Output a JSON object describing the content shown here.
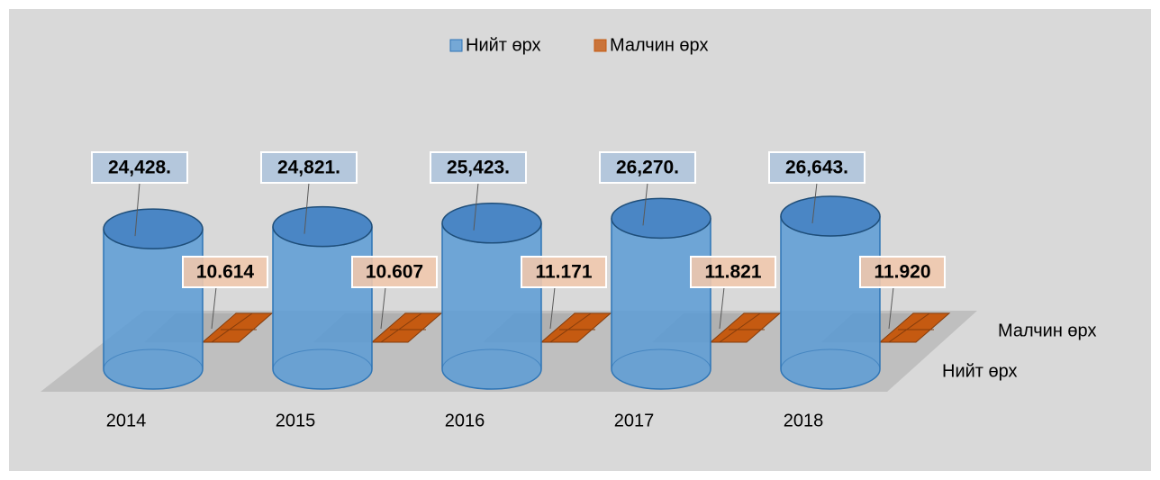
{
  "chart_data": {
    "type": "cylinder3d",
    "categories": [
      "2014",
      "2015",
      "2016",
      "2017",
      "2018"
    ],
    "series": [
      {
        "name": "Нийт өрх",
        "color": "#5b9bd5",
        "values": [
          24428,
          24821,
          25423,
          26270,
          26643
        ],
        "value_labels": [
          "24,428.",
          "24,821.",
          "25,423.",
          "26,270.",
          "26,643."
        ]
      },
      {
        "name": "Малчин өрх",
        "color": "#c55a11",
        "values": [
          10.614,
          10.607,
          11.171,
          11.821,
          11.92
        ],
        "value_labels": [
          "10.614",
          "10.607",
          "11.171",
          "11.821",
          "11.920"
        ]
      }
    ],
    "legend": "top"
  }
}
